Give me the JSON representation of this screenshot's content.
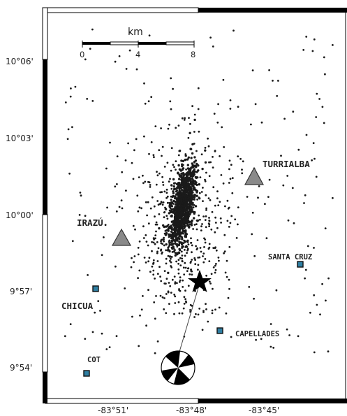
{
  "frame": {
    "lat_labels": [
      "10°06'",
      "10°03'",
      "10°00'",
      "9°57'",
      "9°54'"
    ],
    "lon_labels": [
      "-83°51'",
      "-83°48'",
      "-83°45'"
    ]
  },
  "scale_bar": {
    "unit": "km",
    "ticks": [
      "0",
      "4",
      "8"
    ]
  },
  "volcanoes": [
    {
      "name": "TURRIALBA"
    },
    {
      "name": "IRAZÚ"
    }
  ],
  "stations": [
    {
      "name": "SANTA CRUZ"
    },
    {
      "name": "CHICUA"
    },
    {
      "name": "CAPELLADES"
    },
    {
      "name": "COT"
    }
  ],
  "colors": {
    "volcano": "#8a8a8a",
    "station": "#2f7fa3",
    "event_dot": "#1a1a1a",
    "frame": "#000000"
  },
  "symbols": {
    "mainshock": "star-icon",
    "focal_mechanism": "beachball-icon"
  }
}
